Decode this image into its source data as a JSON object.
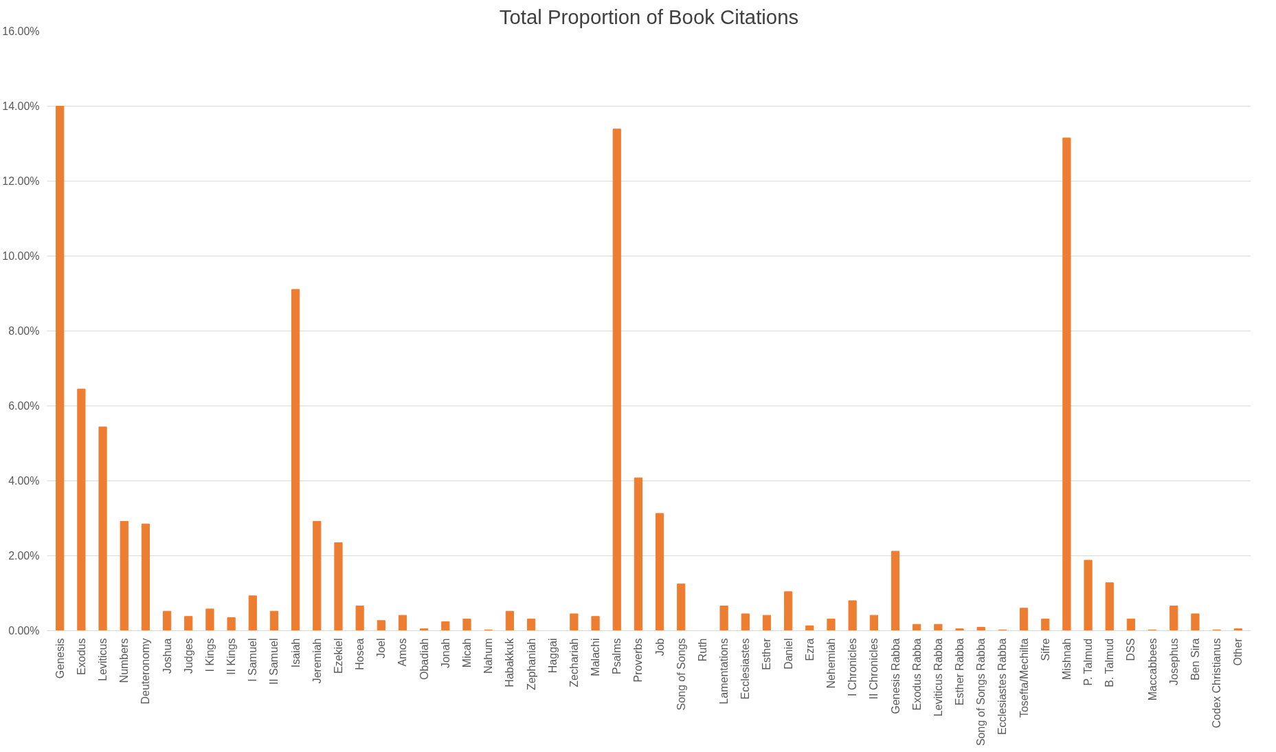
{
  "chart_data": {
    "type": "bar",
    "title": "Total Proportion of Book Citations",
    "categories": [
      "Genesis",
      "Exodus",
      "Leviticus",
      "Numbers",
      "Deuteronomy",
      "Joshua",
      "Judges",
      "I Kings",
      "II Kings",
      "I Samuel",
      "II Samuel",
      "Isaiah",
      "Jeremiah",
      "Ezekiel",
      "Hosea",
      "Joel",
      "Amos",
      "Obadiah",
      "Jonah",
      "Micah",
      "Nahum",
      "Habakkuk",
      "Zephaniah",
      "Haggai",
      "Zechariah",
      "Malachi",
      "Psalms",
      "Proverbs",
      "Job",
      "Song of Songs",
      "Ruth",
      "Lamentations",
      "Ecclesiastes",
      "Esther",
      "Daniel",
      "Ezra",
      "Nehemiah",
      "I Chronicles",
      "II Chronicles",
      "Genesis Rabba",
      "Exodus Rabba",
      "Leviticus Rabba",
      "Esther Rabba",
      "Song of Songs Rabba",
      "Ecclesiastes Rabba",
      "Tosefta/Mechilta",
      "Sifre",
      "Mishnah",
      "P. Talmud",
      "B. Talmud",
      "DSS",
      "Maccabbees",
      "Josephus",
      "Ben Sira",
      "Codex Christianus",
      "Other"
    ],
    "values": [
      14.0,
      6.45,
      5.44,
      2.92,
      2.85,
      0.52,
      0.38,
      0.58,
      0.35,
      0.93,
      0.52,
      9.11,
      2.92,
      2.35,
      0.66,
      0.27,
      0.41,
      0.05,
      0.24,
      0.31,
      0.02,
      0.52,
      0.31,
      0,
      0.45,
      0.38,
      13.39,
      4.08,
      3.13,
      1.25,
      0,
      0.66,
      0.45,
      0.41,
      1.04,
      0.13,
      0.31,
      0.8,
      0.41,
      2.12,
      0.17,
      0.17,
      0.05,
      0.09,
      0.02,
      0.6,
      0.31,
      13.15,
      1.88,
      1.28,
      0.31,
      0.02,
      0.66,
      0.45,
      0.02,
      0.05
    ],
    "color": "#ed7d31",
    "ylim": [
      0,
      16
    ],
    "yticks": [
      {
        "value": 0,
        "label": "0.00%"
      },
      {
        "value": 2,
        "label": "2.00%"
      },
      {
        "value": 4,
        "label": "4.00%"
      },
      {
        "value": 6,
        "label": "6.00%"
      },
      {
        "value": 8,
        "label": "8.00%"
      },
      {
        "value": 10,
        "label": "10.00%"
      },
      {
        "value": 12,
        "label": "12.00%"
      },
      {
        "value": 14,
        "label": "14.00%"
      },
      {
        "value": 16,
        "label": "16.00%"
      }
    ],
    "grid": "y"
  }
}
